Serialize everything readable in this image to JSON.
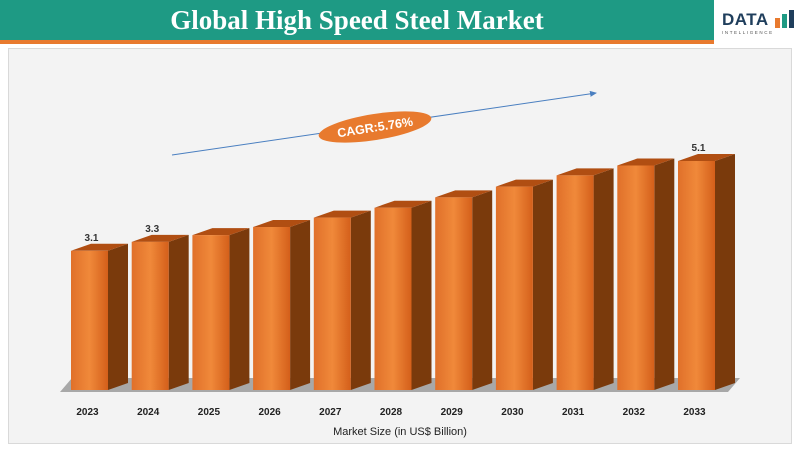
{
  "header": {
    "title": "Global High Speed Steel Market"
  },
  "logo": {
    "text": "DATA",
    "subtext": "INTELLIGENCE"
  },
  "colors": {
    "header_green": "#1e9a84",
    "accent_orange": "#e87a2e",
    "bar_front": "#d9651f",
    "bar_side": "#7a3a0c"
  },
  "annotation": {
    "cagr_label": "CAGR:5.76%"
  },
  "chart_data": {
    "type": "bar",
    "xlabel": "Market Size (in US$ Billion)",
    "categories": [
      "2023",
      "2024",
      "2025",
      "2026",
      "2027",
      "2028",
      "2029",
      "2030",
      "2031",
      "2032",
      "2033"
    ],
    "values": [
      3.1,
      3.3,
      3.45,
      3.63,
      3.84,
      4.06,
      4.29,
      4.53,
      4.78,
      5.0,
      5.1
    ],
    "data_labels": [
      "3.1",
      "3.3",
      "",
      "",
      "",
      "",
      "",
      "",
      "",
      "",
      "5.1"
    ],
    "ylim": [
      0,
      5.1
    ],
    "grid": false,
    "legend": "none"
  }
}
